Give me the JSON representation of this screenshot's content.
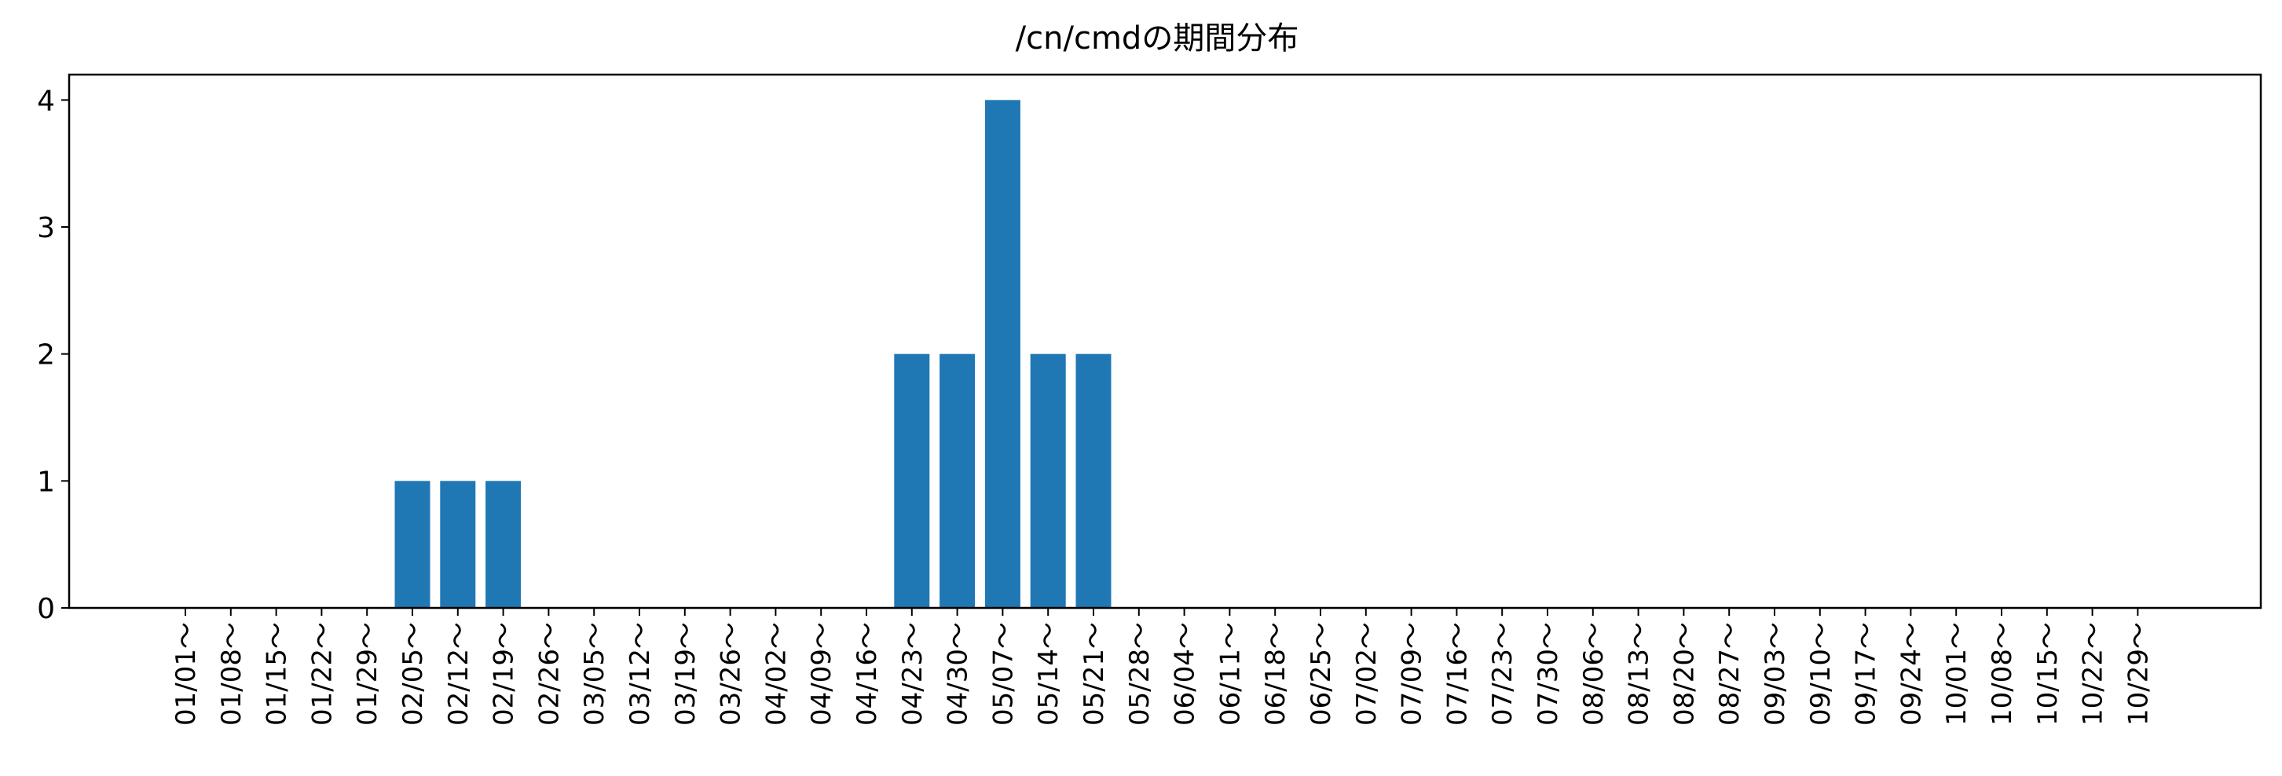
{
  "chart_data": {
    "type": "bar",
    "title": "/cn/cmdの期間分布",
    "xlabel": "",
    "ylabel": "",
    "categories": [
      "01/01～",
      "01/08～",
      "01/15～",
      "01/22～",
      "01/29～",
      "02/05～",
      "02/12～",
      "02/19～",
      "02/26～",
      "03/05～",
      "03/12～",
      "03/19～",
      "03/26～",
      "04/02～",
      "04/09～",
      "04/16～",
      "04/23～",
      "04/30～",
      "05/07～",
      "05/14～",
      "05/21～",
      "05/28～",
      "06/04～",
      "06/11～",
      "06/18～",
      "06/25～",
      "07/02～",
      "07/09～",
      "07/16～",
      "07/23～",
      "07/30～",
      "08/06～",
      "08/13～",
      "08/20～",
      "08/27～",
      "09/03～",
      "09/10～",
      "09/17～",
      "09/24～",
      "10/01～",
      "10/08～",
      "10/15～",
      "10/22～",
      "10/29～"
    ],
    "values": [
      0,
      0,
      0,
      0,
      0,
      1,
      1,
      1,
      0,
      0,
      0,
      0,
      0,
      0,
      0,
      0,
      2,
      2,
      4,
      2,
      2,
      0,
      0,
      0,
      0,
      0,
      0,
      0,
      0,
      0,
      0,
      0,
      0,
      0,
      0,
      0,
      0,
      0,
      0,
      0,
      0,
      0,
      0,
      0
    ],
    "ylim": [
      0,
      4.2
    ],
    "yticks": [
      0,
      1,
      2,
      3,
      4
    ],
    "grid": false,
    "bar_color": "#1f77b4"
  }
}
